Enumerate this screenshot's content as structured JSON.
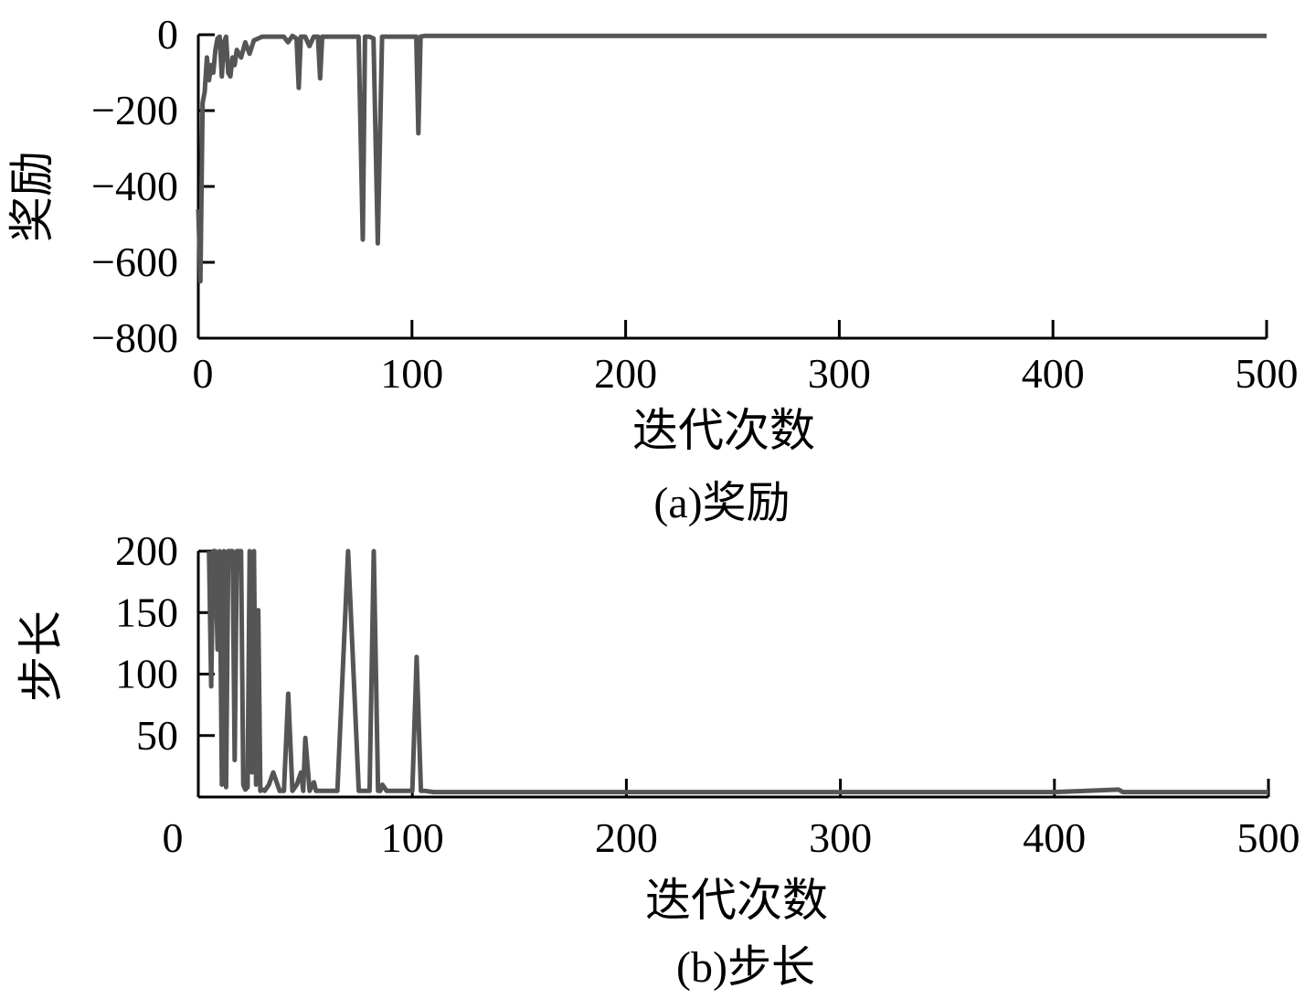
{
  "chart_data": [
    {
      "type": "line",
      "caption": "(a)奖励",
      "xlabel": "迭代次数",
      "ylabel": "奖励",
      "xlim": [
        0,
        500
      ],
      "ylim": [
        -800,
        0
      ],
      "xticks": [
        "0",
        "100",
        "200",
        "300",
        "400",
        "500"
      ],
      "yticks": [
        "0",
        "−200",
        "−400",
        "−600",
        "−800"
      ],
      "line_color": "#555555",
      "series": [
        {
          "x": [
            0,
            1,
            2,
            3,
            4,
            5,
            6,
            7,
            8,
            9,
            10,
            11,
            12,
            13,
            14,
            15,
            16,
            17,
            18,
            20,
            22,
            24,
            26,
            28,
            30,
            35,
            40,
            42,
            44,
            46,
            47,
            48,
            50,
            52,
            54,
            56,
            57,
            58,
            60,
            65,
            70,
            75,
            77,
            78,
            80,
            82,
            84,
            86,
            88,
            90,
            95,
            100,
            102,
            103,
            104,
            106,
            110,
            150,
            200,
            250,
            300,
            350,
            400,
            450,
            500
          ],
          "y": [
            -460,
            -650,
            -180,
            -150,
            -60,
            -120,
            -80,
            -100,
            -40,
            -10,
            -5,
            -110,
            -20,
            -5,
            -100,
            -110,
            -60,
            -80,
            -40,
            -60,
            -20,
            -50,
            -15,
            -10,
            -5,
            -5,
            -5,
            -20,
            -3,
            -10,
            -140,
            -5,
            -5,
            -30,
            -5,
            -5,
            -115,
            -5,
            -5,
            -5,
            -5,
            -5,
            -540,
            -5,
            -5,
            -10,
            -550,
            -5,
            -5,
            -5,
            -5,
            -5,
            -5,
            -260,
            -5,
            -3,
            -3,
            -3,
            -3,
            -3,
            -3,
            -3,
            -3,
            -3,
            -3
          ]
        }
      ]
    },
    {
      "type": "line",
      "caption": "(b)步长",
      "xlabel": "迭代次数",
      "ylabel": "步长",
      "xlim": [
        0,
        500
      ],
      "ylim": [
        0,
        200
      ],
      "xticks": [
        "0",
        "100",
        "200",
        "300",
        "400",
        "500"
      ],
      "yticks": [
        "200",
        "150",
        "100",
        "50"
      ],
      "line_color": "#555555",
      "series": [
        {
          "x": [
            5,
            6,
            7,
            8,
            9,
            10,
            11,
            12,
            13,
            14,
            15,
            16,
            17,
            18,
            19,
            20,
            21,
            22,
            23,
            24,
            25,
            26,
            27,
            28,
            29,
            30,
            31,
            33,
            35,
            38,
            40,
            42,
            44,
            46,
            48,
            49,
            50,
            52,
            54,
            55,
            56,
            58,
            60,
            65,
            70,
            75,
            77,
            78,
            80,
            82,
            84,
            85,
            86,
            88,
            90,
            95,
            100,
            102,
            104,
            106,
            110,
            150,
            200,
            250,
            300,
            350,
            400,
            430,
            432,
            450,
            500
          ],
          "y": [
            200,
            90,
            200,
            200,
            120,
            200,
            10,
            200,
            8,
            200,
            200,
            200,
            30,
            200,
            200,
            200,
            10,
            6,
            8,
            200,
            20,
            200,
            10,
            152,
            5,
            6,
            5,
            10,
            20,
            5,
            5,
            84,
            5,
            10,
            20,
            5,
            48,
            5,
            12,
            5,
            5,
            5,
            5,
            5,
            200,
            5,
            5,
            5,
            5,
            200,
            5,
            5,
            10,
            5,
            5,
            5,
            5,
            114,
            5,
            5,
            4,
            4,
            4,
            4,
            4,
            4,
            4,
            6,
            4,
            4,
            4
          ]
        }
      ]
    }
  ]
}
